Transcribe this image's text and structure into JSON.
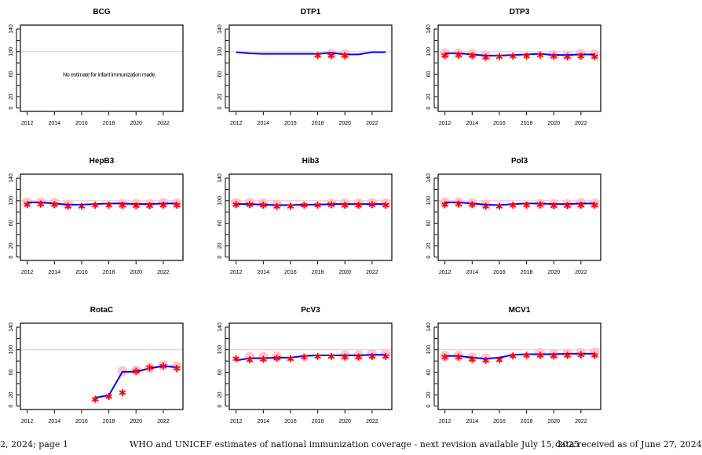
{
  "chart_data": [
    {
      "type": "line",
      "title": "BCG",
      "xlim": [
        2011.5,
        2023.45
      ],
      "ylim": [
        -6,
        147
      ],
      "yticks": [
        0,
        20,
        40,
        60,
        80,
        100,
        120,
        140
      ],
      "ytick_labels": [
        "0",
        "20",
        "60",
        "100",
        "140"
      ],
      "xtick_labels": [
        "2012",
        "2014",
        "2016",
        "2018",
        "2020",
        "2022"
      ],
      "reference_line": 100,
      "note": "No estimate for infant immunization made.",
      "years": [],
      "estimate": [],
      "reported": [],
      "survey": []
    },
    {
      "type": "line",
      "title": "DTP1",
      "xlim": [
        2011.5,
        2023.45
      ],
      "ylim": [
        -6,
        147
      ],
      "yticks": [
        0,
        20,
        40,
        60,
        80,
        100,
        120,
        140
      ],
      "ytick_labels": [
        "0",
        "20",
        "60",
        "100",
        "140"
      ],
      "xtick_labels": [
        "2012",
        "2014",
        "2016",
        "2018",
        "2020",
        "2022"
      ],
      "reference_line": 100,
      "years": [
        2012,
        2013,
        2014,
        2015,
        2016,
        2017,
        2018,
        2019,
        2020,
        2021,
        2022,
        2023
      ],
      "estimate": [
        99,
        97,
        96,
        96,
        96,
        96,
        96,
        98,
        95,
        95,
        99,
        99
      ],
      "reported": [
        [
          2018,
          93
        ],
        [
          2019,
          93
        ],
        [
          2020,
          93
        ]
      ],
      "survey": [
        [
          2019,
          96
        ],
        [
          2020,
          95
        ]
      ]
    },
    {
      "type": "line",
      "title": "DTP3",
      "xlim": [
        2011.5,
        2023.45
      ],
      "ylim": [
        -6,
        147
      ],
      "yticks": [
        0,
        20,
        40,
        60,
        80,
        100,
        120,
        140
      ],
      "ytick_labels": [
        "0",
        "20",
        "60",
        "100",
        "140"
      ],
      "xtick_labels": [
        "2012",
        "2014",
        "2016",
        "2018",
        "2020",
        "2022"
      ],
      "reference_line": 100,
      "years": [
        2012,
        2013,
        2014,
        2015,
        2016,
        2017,
        2018,
        2019,
        2020,
        2021,
        2022,
        2023
      ],
      "estimate": [
        97,
        97,
        95,
        93,
        93,
        94,
        95,
        96,
        94,
        94,
        95,
        95
      ],
      "reported": [
        [
          2012,
          93
        ],
        [
          2013,
          94
        ],
        [
          2014,
          93
        ],
        [
          2015,
          90
        ],
        [
          2016,
          91
        ],
        [
          2017,
          92
        ],
        [
          2018,
          92
        ],
        [
          2019,
          94
        ],
        [
          2020,
          92
        ],
        [
          2021,
          91
        ],
        [
          2022,
          92
        ],
        [
          2023,
          91
        ]
      ],
      "survey": [
        [
          2012,
          97
        ],
        [
          2013,
          97
        ],
        [
          2014,
          96
        ],
        [
          2015,
          93
        ],
        [
          2020,
          94
        ],
        [
          2021,
          93
        ],
        [
          2022,
          96
        ],
        [
          2023,
          95
        ]
      ]
    },
    {
      "type": "line",
      "title": "HepB3",
      "xlim": [
        2011.5,
        2023.45
      ],
      "ylim": [
        -6,
        147
      ],
      "yticks": [
        0,
        20,
        40,
        60,
        80,
        100,
        120,
        140
      ],
      "ytick_labels": [
        "0",
        "20",
        "60",
        "100",
        "140"
      ],
      "xtick_labels": [
        "2012",
        "2014",
        "2016",
        "2018",
        "2020",
        "2022"
      ],
      "reference_line": 100,
      "years": [
        2012,
        2013,
        2014,
        2015,
        2016,
        2017,
        2018,
        2019,
        2020,
        2021,
        2022,
        2023
      ],
      "estimate": [
        97,
        97,
        95,
        93,
        93,
        94,
        95,
        95,
        94,
        94,
        95,
        95
      ],
      "reported": [
        [
          2012,
          93
        ],
        [
          2013,
          94
        ],
        [
          2014,
          93
        ],
        [
          2015,
          90
        ],
        [
          2016,
          90
        ],
        [
          2017,
          92
        ],
        [
          2018,
          92
        ],
        [
          2019,
          92
        ],
        [
          2020,
          91
        ],
        [
          2021,
          91
        ],
        [
          2022,
          92
        ],
        [
          2023,
          92
        ]
      ],
      "survey": [
        [
          2012,
          97
        ],
        [
          2013,
          97
        ],
        [
          2014,
          96
        ],
        [
          2015,
          93
        ],
        [
          2019,
          94
        ],
        [
          2020,
          94
        ],
        [
          2021,
          94
        ],
        [
          2022,
          96
        ],
        [
          2023,
          95
        ]
      ]
    },
    {
      "type": "line",
      "title": "Hib3",
      "xlim": [
        2011.5,
        2023.45
      ],
      "ylim": [
        -6,
        147
      ],
      "yticks": [
        0,
        20,
        40,
        60,
        80,
        100,
        120,
        140
      ],
      "ytick_labels": [
        "0",
        "20",
        "60",
        "100",
        "140"
      ],
      "xtick_labels": [
        "2012",
        "2014",
        "2016",
        "2018",
        "2020",
        "2022"
      ],
      "reference_line": 100,
      "years": [
        2012,
        2013,
        2014,
        2015,
        2016,
        2017,
        2018,
        2019,
        2020,
        2021,
        2022,
        2023
      ],
      "estimate": [
        94,
        94,
        93,
        92,
        92,
        93,
        93,
        94,
        94,
        94,
        94,
        94
      ],
      "reported": [
        [
          2012,
          93
        ],
        [
          2013,
          93
        ],
        [
          2014,
          92
        ],
        [
          2015,
          90
        ],
        [
          2016,
          90
        ],
        [
          2017,
          92
        ],
        [
          2018,
          92
        ],
        [
          2019,
          93
        ],
        [
          2020,
          92
        ],
        [
          2021,
          92
        ],
        [
          2022,
          93
        ],
        [
          2023,
          92
        ]
      ],
      "survey": [
        [
          2012,
          96
        ],
        [
          2013,
          96
        ],
        [
          2014,
          95
        ],
        [
          2015,
          93
        ],
        [
          2019,
          95
        ],
        [
          2020,
          95
        ],
        [
          2021,
          95
        ],
        [
          2022,
          96
        ],
        [
          2023,
          95
        ]
      ]
    },
    {
      "type": "line",
      "title": "Pol3",
      "xlim": [
        2011.5,
        2023.45
      ],
      "ylim": [
        -6,
        147
      ],
      "yticks": [
        0,
        20,
        40,
        60,
        80,
        100,
        120,
        140
      ],
      "ytick_labels": [
        "0",
        "20",
        "60",
        "100",
        "140"
      ],
      "xtick_labels": [
        "2012",
        "2014",
        "2016",
        "2018",
        "2020",
        "2022"
      ],
      "reference_line": 100,
      "years": [
        2012,
        2013,
        2014,
        2015,
        2016,
        2017,
        2018,
        2019,
        2020,
        2021,
        2022,
        2023
      ],
      "estimate": [
        97,
        97,
        95,
        93,
        92,
        94,
        95,
        95,
        94,
        94,
        95,
        95
      ],
      "reported": [
        [
          2012,
          93
        ],
        [
          2013,
          94
        ],
        [
          2014,
          93
        ],
        [
          2015,
          90
        ],
        [
          2016,
          90
        ],
        [
          2017,
          92
        ],
        [
          2018,
          92
        ],
        [
          2019,
          93
        ],
        [
          2020,
          91
        ],
        [
          2021,
          91
        ],
        [
          2022,
          92
        ],
        [
          2023,
          92
        ]
      ],
      "survey": [
        [
          2012,
          97
        ],
        [
          2013,
          97
        ],
        [
          2014,
          96
        ],
        [
          2015,
          93
        ],
        [
          2019,
          94
        ],
        [
          2020,
          94
        ],
        [
          2021,
          94
        ],
        [
          2022,
          96
        ],
        [
          2023,
          95
        ]
      ]
    },
    {
      "type": "line",
      "title": "RotaC",
      "xlim": [
        2011.5,
        2023.45
      ],
      "ylim": [
        -6,
        147
      ],
      "yticks": [
        0,
        20,
        40,
        60,
        80,
        100,
        120,
        140
      ],
      "ytick_labels": [
        "0",
        "20",
        "60",
        "100",
        "140"
      ],
      "xtick_labels": [
        "2012",
        "2014",
        "2016",
        "2018",
        "2020",
        "2022"
      ],
      "reference_line": 100,
      "years": [
        2017,
        2018,
        2019,
        2020,
        2021,
        2022,
        2023
      ],
      "estimate": [
        15,
        19,
        61,
        61,
        67,
        71,
        69
      ],
      "reported": [
        [
          2017,
          12
        ],
        [
          2018,
          17
        ],
        [
          2019,
          24
        ],
        [
          2020,
          62
        ],
        [
          2021,
          68
        ],
        [
          2022,
          71
        ],
        [
          2023,
          67
        ]
      ],
      "survey": [
        [
          2019,
          62
        ],
        [
          2020,
          63
        ],
        [
          2021,
          68
        ],
        [
          2022,
          72
        ],
        [
          2023,
          70
        ]
      ]
    },
    {
      "type": "line",
      "title": "PcV3",
      "xlim": [
        2011.5,
        2023.45
      ],
      "ylim": [
        -6,
        147
      ],
      "yticks": [
        0,
        20,
        40,
        60,
        80,
        100,
        120,
        140
      ],
      "ytick_labels": [
        "0",
        "20",
        "60",
        "100",
        "140"
      ],
      "xtick_labels": [
        "2012",
        "2014",
        "2016",
        "2018",
        "2020",
        "2022"
      ],
      "reference_line": 100,
      "years": [
        2012,
        2013,
        2014,
        2015,
        2016,
        2017,
        2018,
        2019,
        2020,
        2021,
        2022,
        2023
      ],
      "estimate": [
        81,
        85,
        85,
        86,
        86,
        89,
        90,
        90,
        90,
        90,
        91,
        91
      ],
      "reported": [
        [
          2012,
          84
        ],
        [
          2013,
          82
        ],
        [
          2014,
          83
        ],
        [
          2015,
          85
        ],
        [
          2016,
          84
        ],
        [
          2017,
          87
        ],
        [
          2018,
          88
        ],
        [
          2019,
          88
        ],
        [
          2020,
          87
        ],
        [
          2021,
          87
        ],
        [
          2022,
          88
        ],
        [
          2023,
          88
        ]
      ],
      "survey": [
        [
          2013,
          87
        ],
        [
          2014,
          87
        ],
        [
          2015,
          88
        ],
        [
          2020,
          90
        ],
        [
          2021,
          90
        ],
        [
          2022,
          92
        ],
        [
          2023,
          92
        ]
      ]
    },
    {
      "type": "line",
      "title": "MCV1",
      "xlim": [
        2011.5,
        2023.45
      ],
      "ylim": [
        -6,
        147
      ],
      "yticks": [
        0,
        20,
        40,
        60,
        80,
        100,
        120,
        140
      ],
      "ytick_labels": [
        "0",
        "20",
        "60",
        "100",
        "140"
      ],
      "xtick_labels": [
        "2012",
        "2014",
        "2016",
        "2018",
        "2020",
        "2022"
      ],
      "reference_line": 100,
      "years": [
        2012,
        2013,
        2014,
        2015,
        2016,
        2017,
        2018,
        2019,
        2020,
        2021,
        2022,
        2023
      ],
      "estimate": [
        89,
        89,
        86,
        84,
        86,
        91,
        92,
        92,
        92,
        93,
        93,
        93
      ],
      "reported": [
        [
          2012,
          87
        ],
        [
          2013,
          87
        ],
        [
          2014,
          83
        ],
        [
          2015,
          81
        ],
        [
          2016,
          82
        ],
        [
          2017,
          89
        ],
        [
          2018,
          90
        ],
        [
          2019,
          90
        ],
        [
          2020,
          89
        ],
        [
          2021,
          90
        ],
        [
          2022,
          91
        ],
        [
          2023,
          90
        ]
      ],
      "survey": [
        [
          2012,
          89
        ],
        [
          2013,
          89
        ],
        [
          2014,
          86
        ],
        [
          2015,
          85
        ],
        [
          2019,
          94
        ],
        [
          2020,
          92
        ],
        [
          2021,
          93
        ],
        [
          2022,
          94
        ],
        [
          2023,
          95
        ]
      ]
    }
  ],
  "colors": {
    "estimate": "#0000ff",
    "reported": "#ff0000",
    "survey": "#ffc0cb",
    "reference": "#ffc0cb",
    "axis": "#000000"
  },
  "footer": {
    "left": "2, 2024; page 1",
    "center": "WHO and UNICEF estimates of national immunization coverage - next revision available July 15, 2025",
    "right": "data received as of June 27, 2024"
  }
}
